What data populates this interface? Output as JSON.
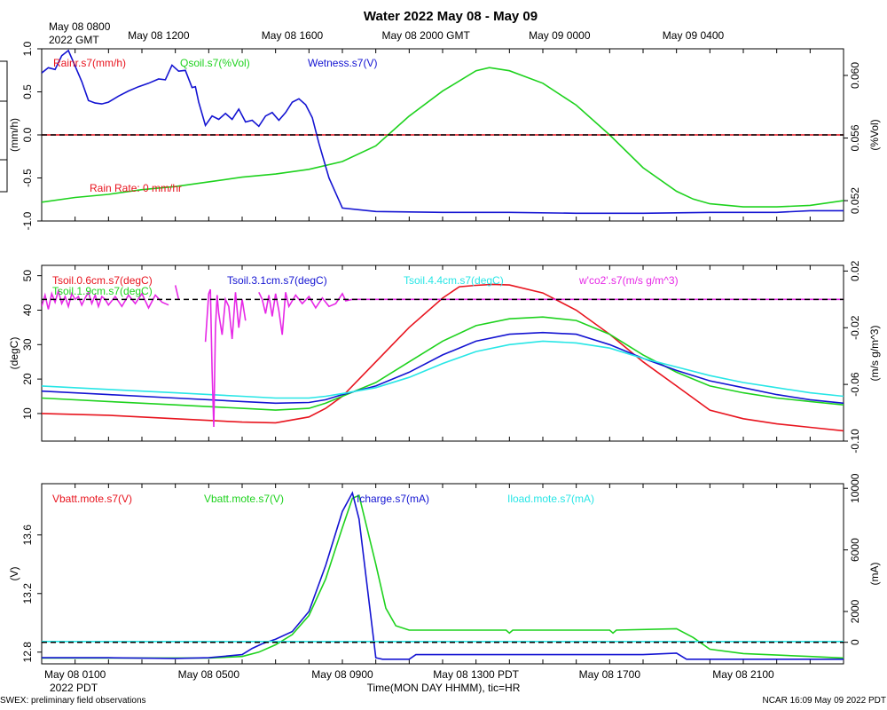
{
  "title": "Water 2022 May 08 - May 09",
  "top_axis": {
    "origin_line1": "May 08 0800",
    "origin_line2": "2022 GMT",
    "ticks": [
      {
        "h": 3.5,
        "label": "May 08 1200"
      },
      {
        "h": 7.5,
        "label": "May 08 1600"
      },
      {
        "h": 11.5,
        "label": "May 08 2000 GMT"
      },
      {
        "h": 15.5,
        "label": "May 09 0000"
      },
      {
        "h": 19.5,
        "label": "May 09 0400"
      }
    ]
  },
  "bottom_axis": {
    "origin_line2": "2022 PDT",
    "ticks": [
      {
        "h": 1,
        "label": "May 08 0100"
      },
      {
        "h": 5,
        "label": "May 08 0500"
      },
      {
        "h": 9,
        "label": "May 08 0900"
      },
      {
        "h": 13,
        "label": "May 08 1300 PDT"
      },
      {
        "h": 17,
        "label": "May 08 1700"
      },
      {
        "h": 21,
        "label": "May 08 2100"
      }
    ],
    "xlabel": "Time(MON DAY HHMM), tic=HR"
  },
  "footer": {
    "left": "SWEX: preliminary field observations",
    "right": "NCAR 16:09 May 09 2022 PDT"
  },
  "colors": {
    "red": "#e8141e",
    "green": "#1ed21e",
    "blue": "#1414d2",
    "cyan": "#28e6e6",
    "magenta": "#e628e6",
    "black": "#000000"
  },
  "chart_data": [
    {
      "type": "line",
      "panel": "water",
      "x_range_hours": [
        0,
        24
      ],
      "left_axis": {
        "label": "(mm/h)",
        "ylim": [
          -1.0,
          1.0
        ],
        "ticks": [
          "1.0",
          "0.5",
          "0.0",
          "-0.5",
          "-1.0"
        ],
        "tick_values": [
          1.0,
          0.5,
          0.0,
          -0.5,
          -1.0
        ]
      },
      "right_axis": {
        "label": "(%Vol)",
        "ylim": [
          0.0507,
          0.0617
        ],
        "ticks": [
          "0.060",
          "0.056",
          "0.052"
        ],
        "tick_values": [
          0.06,
          0.056,
          0.052
        ]
      },
      "annotation": "Rain Rate: 0 mm/hr",
      "reference_line": {
        "axis": "left",
        "value": 0.0
      },
      "series": [
        {
          "name": "Rainr.s7(mm/h)",
          "color": "red",
          "axis": "left",
          "x": [
            0,
            24
          ],
          "y": [
            0.0,
            0.0
          ]
        },
        {
          "name": "Qsoil.s7(%Vol)",
          "color": "green",
          "axis": "right",
          "x": [
            0,
            1,
            2,
            3,
            4,
            5,
            6,
            7,
            8,
            9,
            10,
            11,
            12,
            13,
            13.4,
            14,
            15,
            16,
            17,
            18,
            19,
            19.5,
            20,
            21,
            22,
            23,
            24
          ],
          "y": [
            0.0519,
            0.0522,
            0.0524,
            0.0527,
            0.0529,
            0.0532,
            0.0535,
            0.0537,
            0.054,
            0.0545,
            0.0555,
            0.0574,
            0.059,
            0.0603,
            0.0605,
            0.0603,
            0.0595,
            0.0581,
            0.0562,
            0.0541,
            0.0526,
            0.0521,
            0.0518,
            0.0516,
            0.0516,
            0.0517,
            0.052
          ]
        },
        {
          "name": "Wetness.s7(V)",
          "color": "blue",
          "axis": "left",
          "x": [
            0,
            0.2,
            0.4,
            0.6,
            0.8,
            1.0,
            1.2,
            1.4,
            1.6,
            1.8,
            2.0,
            2.3,
            2.6,
            2.9,
            3.2,
            3.5,
            3.7,
            3.9,
            4.1,
            4.3,
            4.5,
            4.6,
            4.7,
            4.9,
            5.1,
            5.3,
            5.5,
            5.7,
            5.9,
            6.1,
            6.3,
            6.5,
            6.7,
            6.9,
            7.1,
            7.3,
            7.5,
            7.7,
            7.9,
            8.1,
            8.3,
            8.6,
            9,
            10,
            12,
            14,
            16,
            18,
            20,
            22,
            23,
            24
          ],
          "y": [
            0.72,
            0.78,
            0.76,
            0.92,
            0.98,
            0.8,
            0.62,
            0.4,
            0.37,
            0.36,
            0.38,
            0.45,
            0.51,
            0.56,
            0.6,
            0.65,
            0.64,
            0.81,
            0.74,
            0.75,
            0.55,
            0.56,
            0.38,
            0.11,
            0.22,
            0.18,
            0.25,
            0.18,
            0.3,
            0.15,
            0.17,
            0.1,
            0.22,
            0.26,
            0.17,
            0.26,
            0.38,
            0.42,
            0.35,
            0.2,
            -0.1,
            -0.5,
            -0.85,
            -0.89,
            -0.9,
            -0.9,
            -0.91,
            -0.91,
            -0.9,
            -0.9,
            -0.88,
            -0.88
          ]
        }
      ]
    },
    {
      "type": "line",
      "panel": "soil-temperature",
      "x_range_hours": [
        0,
        24
      ],
      "left_axis": {
        "label": "(degC)",
        "ylim": [
          2,
          53
        ],
        "ticks": [
          "50",
          "40",
          "30",
          "20",
          "10"
        ],
        "tick_values": [
          50,
          40,
          30,
          20,
          10
        ]
      },
      "right_axis": {
        "label": "(m/s g/m^3)",
        "ylim": [
          -0.1,
          0.024
        ],
        "ticks": [
          "0.02",
          "-0.02",
          "-0.06",
          "-0.10"
        ],
        "tick_values": [
          0.02,
          -0.02,
          -0.06,
          -0.1
        ]
      },
      "reference_line": {
        "axis": "right",
        "value": 0.0
      },
      "series": [
        {
          "name": "Tsoil.0.6cm.s7(degC)",
          "color": "red",
          "axis": "left",
          "x": [
            0,
            2,
            4,
            6,
            7,
            8,
            8.5,
            9,
            10,
            11,
            12,
            12.5,
            13,
            13.5,
            14,
            15,
            16,
            17,
            18,
            19,
            20,
            21,
            22,
            23,
            24
          ],
          "y": [
            10,
            9.5,
            8.5,
            7.5,
            7.3,
            9,
            11.5,
            15,
            25,
            35,
            43.5,
            46.8,
            47.2,
            47.5,
            47.3,
            45,
            40,
            33,
            25,
            18,
            11,
            8.5,
            7,
            6,
            5
          ]
        },
        {
          "name": "Tsoil.1.9cm.s7(degC)",
          "color": "green",
          "axis": "left",
          "x": [
            0,
            2,
            4,
            6,
            7,
            8,
            8.5,
            9,
            10,
            11,
            12,
            13,
            14,
            15,
            16,
            17,
            18,
            19,
            20,
            21,
            22,
            23,
            24
          ],
          "y": [
            14.5,
            13.5,
            12.5,
            11.5,
            11,
            11.5,
            13,
            15,
            19,
            25,
            31,
            35.5,
            37.5,
            38,
            37,
            33,
            27,
            22,
            18,
            16,
            14.5,
            13.5,
            12.5
          ]
        },
        {
          "name": "Tsoil.3.1cm.s7(degC)",
          "color": "blue",
          "axis": "left",
          "x": [
            0,
            2,
            4,
            6,
            7,
            8,
            8.5,
            9,
            10,
            11,
            12,
            13,
            14,
            15,
            16,
            17,
            18,
            19,
            20,
            21,
            22,
            23,
            24
          ],
          "y": [
            16.5,
            15.5,
            14.5,
            13.5,
            13,
            13.2,
            14,
            15.5,
            18,
            22,
            27,
            31,
            33,
            33.5,
            33,
            30,
            26,
            22.5,
            19.5,
            17.5,
            15.5,
            14,
            13
          ]
        },
        {
          "name": "Tsoil.4.4cm.s7(degC)",
          "color": "cyan",
          "axis": "left",
          "x": [
            0,
            2,
            4,
            6,
            7,
            8,
            8.5,
            9,
            10,
            11,
            12,
            13,
            14,
            15,
            16,
            17,
            18,
            19,
            20,
            21,
            22,
            23,
            24
          ],
          "y": [
            18,
            17,
            16,
            15,
            14.5,
            14.5,
            15,
            15.8,
            17.5,
            20.5,
            24.5,
            28,
            30,
            31,
            30.5,
            29,
            26,
            23.5,
            21,
            19,
            17.5,
            16,
            15
          ]
        },
        {
          "name": "w'co2'.s7(m/s g/m^3)",
          "color": "magenta",
          "axis": "right",
          "x": [
            0,
            0.1,
            0.2,
            0.3,
            0.4,
            0.5,
            0.6,
            0.7,
            0.8,
            0.9,
            1.0,
            1.1,
            1.2,
            1.3,
            1.4,
            1.5,
            1.6,
            1.7,
            1.8,
            1.9,
            2.0,
            2.2,
            2.4,
            2.6,
            2.8,
            3.0,
            3.2,
            3.4,
            3.6,
            3.8,
            null,
            4.0,
            4.1,
            null,
            4.9,
            5.0,
            5.05,
            5.1,
            5.15,
            5.2,
            5.25,
            5.3,
            5.4,
            5.5,
            5.6,
            5.7,
            5.8,
            5.9,
            6.0,
            6.1,
            null,
            6.5,
            6.6,
            6.7,
            6.8,
            6.9,
            7.0,
            7.1,
            7.2,
            7.3,
            7.4,
            7.6,
            7.8,
            8.0,
            8.2,
            8.4,
            8.6,
            8.8,
            9.0,
            9.1,
            9.3,
            10,
            12,
            14,
            16,
            18,
            20,
            22,
            24
          ],
          "y": [
            -0.005,
            0.003,
            -0.007,
            0.004,
            -0.002,
            0.006,
            -0.003,
            0.002,
            -0.005,
            0.004,
            0.0,
            0.002,
            -0.004,
            0.001,
            0.005,
            -0.003,
            0.003,
            -0.005,
            0.002,
            0.0,
            -0.004,
            0.002,
            -0.005,
            0.003,
            -0.003,
            0.004,
            -0.006,
            0.003,
            -0.002,
            -0.004,
            null,
            0.01,
            0.0,
            null,
            -0.03,
            0.004,
            0.007,
            -0.05,
            -0.09,
            -0.02,
            0.003,
            -0.01,
            -0.025,
            0.0,
            -0.005,
            -0.028,
            0.005,
            -0.02,
            0.0,
            -0.015,
            null,
            0.005,
            0.0,
            -0.01,
            0.003,
            -0.012,
            0.004,
            -0.008,
            -0.025,
            0.005,
            -0.005,
            0.003,
            -0.003,
            0.002,
            -0.006,
            0.001,
            -0.005,
            -0.003,
            0.004,
            -0.001,
            0.0,
            0.0,
            0.0,
            0.0,
            0.0,
            0.0,
            0.0,
            0.0,
            0.0
          ]
        }
      ]
    },
    {
      "type": "line",
      "panel": "power",
      "x_range_hours": [
        0,
        24
      ],
      "left_axis": {
        "label": "(V)",
        "ylim": [
          12.72,
          13.95
        ],
        "ticks": [
          "13.6",
          "13.2",
          "12.8"
        ],
        "tick_values": [
          13.6,
          13.2,
          12.8
        ]
      },
      "right_axis": {
        "label": "(mA)",
        "ylim": [
          -1400,
          10300
        ],
        "ticks": [
          "10000",
          "6000",
          "2000",
          "0"
        ],
        "tick_values": [
          10000,
          6000,
          2000,
          0
        ]
      },
      "reference_line": {
        "axis": "right",
        "value": 0
      },
      "series": [
        {
          "name": "Vbatt.mote.s7(V)",
          "color": "red",
          "axis": "left",
          "x": [
            0,
            24
          ],
          "y": [
            12.71,
            12.71
          ]
        },
        {
          "name": "Vbatt.mote.s7(V)",
          "color": "green",
          "axis": "left",
          "x": [
            0,
            2,
            4,
            5,
            6,
            6.5,
            7,
            7.5,
            8,
            8.5,
            9,
            9.3,
            9.5,
            10,
            10.3,
            10.6,
            11,
            12,
            13.9,
            14,
            14.1,
            17,
            17.1,
            17.2,
            19,
            19.5,
            20,
            21,
            22,
            23,
            24
          ],
          "y": [
            12.76,
            12.76,
            12.76,
            12.76,
            12.77,
            12.8,
            12.85,
            12.92,
            13.05,
            13.3,
            13.65,
            13.85,
            13.87,
            13.4,
            13.1,
            12.98,
            12.95,
            12.95,
            12.95,
            12.93,
            12.95,
            12.95,
            12.93,
            12.95,
            12.96,
            12.9,
            12.82,
            12.79,
            12.78,
            12.77,
            12.76
          ]
        },
        {
          "name": "Icharge.s7(mA)",
          "color": "blue",
          "axis": "right",
          "x": [
            0,
            2,
            4,
            5,
            6,
            6.3,
            6.6,
            7,
            7.5,
            8,
            8.5,
            9,
            9.3,
            9.5,
            10,
            10.2,
            11,
            11.2,
            12,
            15,
            18,
            19,
            19.3,
            20,
            22,
            24
          ],
          "y": [
            -1000,
            -1000,
            -1050,
            -1000,
            -800,
            -400,
            -100,
            200,
            700,
            2000,
            5000,
            8500,
            9700,
            8000,
            -1000,
            -1100,
            -1100,
            -800,
            -800,
            -800,
            -800,
            -700,
            -1100,
            -1100,
            -1100,
            -1100
          ]
        },
        {
          "name": "Iload.mote.s7(mA)",
          "color": "cyan",
          "axis": "right",
          "x": [
            0,
            24
          ],
          "y": [
            50,
            50
          ]
        }
      ]
    }
  ]
}
